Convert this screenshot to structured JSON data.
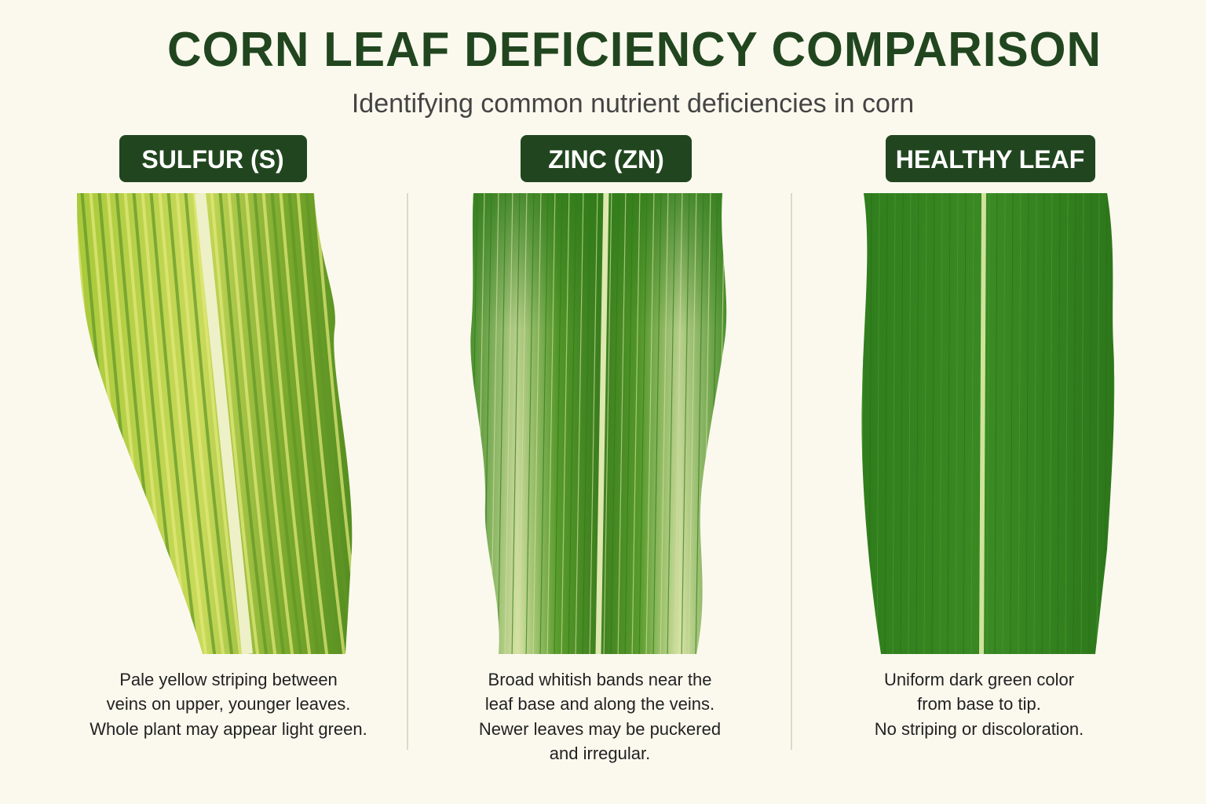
{
  "header": {
    "title": "CORN LEAF DEFICIENCY COMPARISON",
    "subtitle": "Identifying common nutrient deficiencies in corn"
  },
  "panels": [
    {
      "label": "SULFUR (S)",
      "description": [
        "Pale yellow striping between",
        "veins on upper, younger leaves.",
        "Whole plant may appear light green."
      ]
    },
    {
      "label": "ZINC (ZN)",
      "description": [
        "Broad whitish bands near the",
        "leaf base and along the veins.",
        "Newer leaves may be puckered",
        "and irregular."
      ]
    },
    {
      "label": "HEALTHY LEAF",
      "description": [
        "Uniform dark green color",
        "from base to tip.",
        "No striping or discoloration."
      ]
    }
  ]
}
